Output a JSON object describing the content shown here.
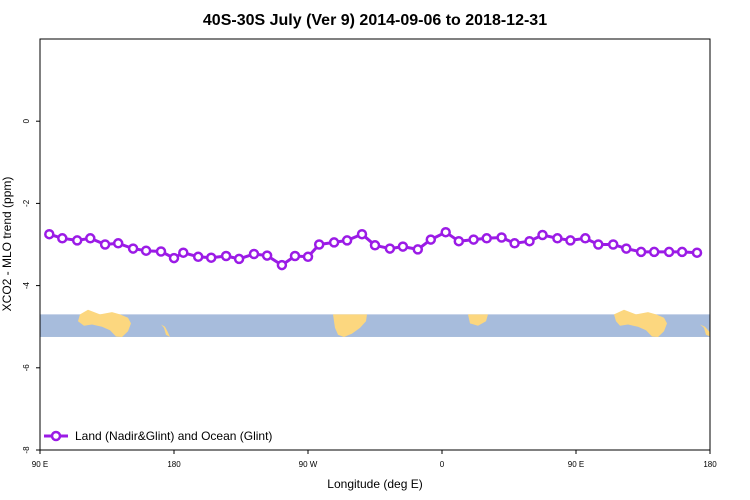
{
  "chart_data": {
    "type": "line",
    "title": "40S-30S July (Ver 9)   2014-09-06 to 2018-12-31",
    "xlabel": "Longitude (deg E)",
    "ylabel": "XCO2 - MLO trend (ppm)",
    "xlim": [
      90,
      450
    ],
    "ylim": [
      -8,
      2
    ],
    "x_ticks": [
      {
        "value": 90,
        "label": "90 E"
      },
      {
        "value": 162,
        "label": "180"
      },
      {
        "value": 234,
        "label": "90 W"
      },
      {
        "value": 306,
        "label": "0"
      },
      {
        "value": 378,
        "label": "90 E"
      },
      {
        "value": 450,
        "label": "180"
      }
    ],
    "y_ticks": [
      {
        "value": -8,
        "label": "-8"
      },
      {
        "value": -6,
        "label": "-6"
      },
      {
        "value": -4,
        "label": "-4"
      },
      {
        "value": -2,
        "label": "-2"
      },
      {
        "value": 0,
        "label": "0"
      }
    ],
    "grid": false,
    "legend_position": "bottom-left",
    "map_strip": {
      "y_range": [
        -5.25,
        -4.7
      ],
      "ocean_color": "#a7bcdc",
      "land_color": "#fcd77f"
    },
    "series": [
      {
        "name": "Land (Nadir&Glint) and Ocean (Glint)",
        "color": "#9b1be6",
        "x": [
          95,
          102,
          110,
          117,
          125,
          132,
          140,
          147,
          155,
          162,
          167,
          175,
          182,
          190,
          197,
          205,
          212,
          220,
          227,
          234,
          240,
          248,
          255,
          263,
          270,
          278,
          285,
          293,
          300,
          308,
          315,
          323,
          330,
          338,
          345,
          353,
          360,
          368,
          375,
          383,
          390,
          398,
          405,
          413,
          420,
          428,
          435,
          443
        ],
        "values": [
          -2.75,
          -2.85,
          -2.9,
          -2.85,
          -3.0,
          -2.97,
          -3.1,
          -3.15,
          -3.17,
          -3.33,
          -3.2,
          -3.3,
          -3.32,
          -3.28,
          -3.35,
          -3.23,
          -3.27,
          -3.5,
          -3.28,
          -3.3,
          -3.0,
          -2.95,
          -2.9,
          -2.75,
          -3.02,
          -3.1,
          -3.05,
          -3.12,
          -2.88,
          -2.7,
          -2.92,
          -2.88,
          -2.85,
          -2.83,
          -2.97,
          -2.92,
          -2.77,
          -2.85,
          -2.9,
          -2.85,
          -3.0,
          -3.0,
          -3.1,
          -3.18,
          -3.18,
          -3.18,
          -3.18,
          -3.2
        ]
      }
    ]
  }
}
